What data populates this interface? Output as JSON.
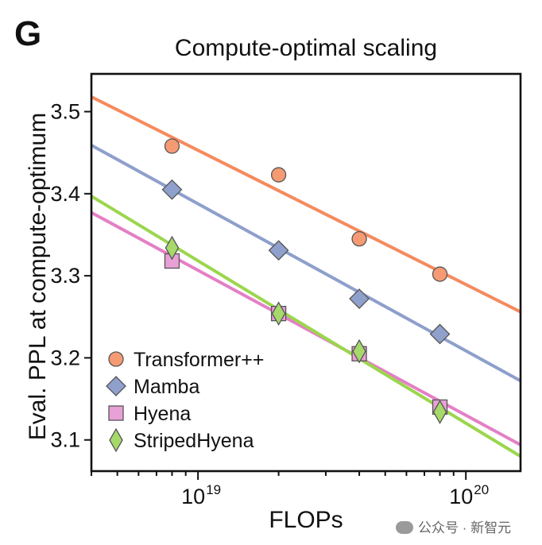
{
  "panel_label": "G",
  "watermark": "公众号 · 新智元",
  "chart_data": {
    "type": "scatter",
    "title": "Compute-optimal scaling",
    "xlabel": "FLOPs",
    "ylabel": "Eval. PPL at compute-optimum",
    "xscale": "log",
    "xlim": [
      4e+18,
      1.6e+20
    ],
    "ylim": [
      3.062,
      3.546
    ],
    "yticks": [
      3.1,
      3.2,
      3.3,
      3.4,
      3.5
    ],
    "ytick_labels": [
      "3.1",
      "3.2",
      "3.3",
      "3.4",
      "3.5"
    ],
    "xticks_major": [
      1e+19,
      1e+20
    ],
    "xtick_labels": [
      {
        "base": "10",
        "exp": "19"
      },
      {
        "base": "10",
        "exp": "20"
      }
    ],
    "grid": false,
    "legend_position": "lower-left",
    "series": [
      {
        "name": "Transformer++",
        "marker": "circle",
        "color": "#F59A73",
        "line_color": "#F58A5E",
        "x": [
          8e+18,
          2e+19,
          4e+19,
          8e+19
        ],
        "y": [
          3.458,
          3.423,
          3.345,
          3.302
        ],
        "fit": {
          "x": [
            4e+18,
            1.6e+20
          ],
          "y": [
            3.518,
            3.256
          ]
        }
      },
      {
        "name": "Mamba",
        "marker": "diamond",
        "color": "#8FA0CC",
        "line_color": "#8E9FCC",
        "x": [
          8e+18,
          2e+19,
          4e+19,
          8e+19
        ],
        "y": [
          3.405,
          3.331,
          3.272,
          3.229
        ],
        "fit": {
          "x": [
            4e+18,
            1.6e+20
          ],
          "y": [
            3.459,
            3.172
          ]
        }
      },
      {
        "name": "Hyena",
        "marker": "square",
        "color": "#E8A0D6",
        "line_color": "#E47FC6",
        "x": [
          8e+18,
          2e+19,
          4e+19,
          8e+19
        ],
        "y": [
          3.318,
          3.254,
          3.205,
          3.14
        ],
        "fit": {
          "x": [
            4e+18,
            1.6e+20
          ],
          "y": [
            3.377,
            3.094
          ]
        }
      },
      {
        "name": "StripedHyena",
        "marker": "thin-diamond",
        "color": "#A6D96A",
        "line_color": "#9BD64D",
        "x": [
          8e+18,
          2e+19,
          4e+19,
          8e+19
        ],
        "y": [
          3.334,
          3.254,
          3.208,
          3.134
        ],
        "fit": {
          "x": [
            4e+18,
            1.6e+20
          ],
          "y": [
            3.397,
            3.08
          ]
        }
      }
    ]
  }
}
